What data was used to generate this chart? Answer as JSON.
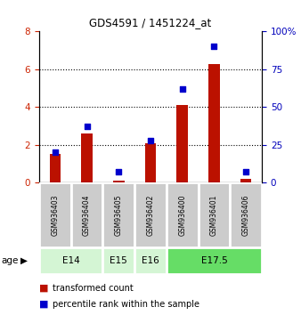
{
  "title": "GDS4591 / 1451224_at",
  "samples": [
    "GSM936403",
    "GSM936404",
    "GSM936405",
    "GSM936402",
    "GSM936400",
    "GSM936401",
    "GSM936406"
  ],
  "red_values": [
    1.5,
    2.6,
    0.1,
    2.1,
    4.1,
    6.3,
    0.2
  ],
  "blue_values": [
    20,
    37,
    7,
    28,
    62,
    90,
    7
  ],
  "left_ylim": [
    0,
    8
  ],
  "right_ylim": [
    0,
    100
  ],
  "left_yticks": [
    0,
    2,
    4,
    6,
    8
  ],
  "right_yticks": [
    0,
    25,
    50,
    75,
    100
  ],
  "right_yticklabels": [
    "0",
    "25",
    "50",
    "75",
    "100%"
  ],
  "grid_yticks": [
    2,
    4,
    6
  ],
  "age_groups": [
    {
      "label": "E14",
      "start": 0,
      "end": 2,
      "color": "#d4f5d4"
    },
    {
      "label": "E15",
      "start": 2,
      "end": 3,
      "color": "#d4f5d4"
    },
    {
      "label": "E16",
      "start": 3,
      "end": 4,
      "color": "#d4f5d4"
    },
    {
      "label": "E17.5",
      "start": 4,
      "end": 7,
      "color": "#66dd66"
    }
  ],
  "bar_color": "#bb1100",
  "dot_color": "#0000cc",
  "left_tick_color": "#cc2200",
  "right_tick_color": "#0000bb",
  "bar_width": 0.35,
  "dot_size": 20,
  "legend_red_label": "transformed count",
  "legend_blue_label": "percentile rank within the sample",
  "age_label": "age",
  "sample_box_color": "#cccccc",
  "sample_box_edge": "#ffffff"
}
